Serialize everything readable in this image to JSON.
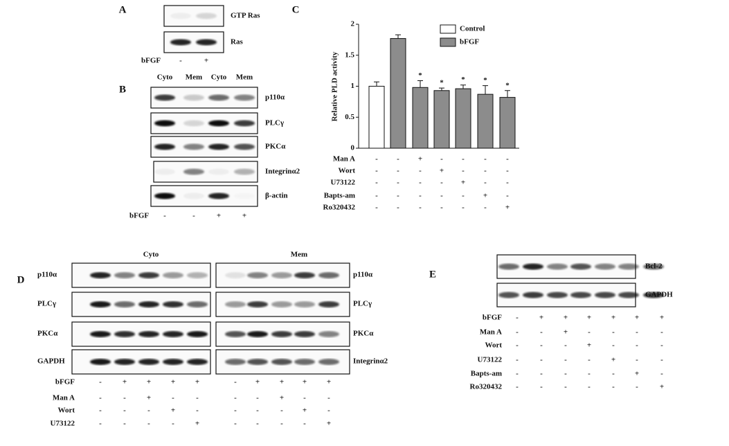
{
  "panels": {
    "a": {
      "label": "A",
      "blots": [
        "GTP Ras",
        "Ras"
      ],
      "treatments": [
        {
          "name": "bFGF",
          "signs": [
            "-",
            "+"
          ]
        }
      ]
    },
    "b": {
      "label": "B",
      "columns": [
        "Cyto",
        "Mem",
        "Cyto",
        "Mem"
      ],
      "blots": [
        "p110α",
        "PLCγ",
        "PKCα",
        "Integrinα2",
        "β-actin"
      ],
      "treatments": [
        {
          "name": "bFGF",
          "signs": [
            "-",
            "-",
            "+",
            "+"
          ]
        }
      ]
    },
    "c": {
      "label": "C",
      "treatments": [
        {
          "name": "Man A",
          "signs": [
            "-",
            "-",
            "+",
            "-",
            "-",
            "-",
            "-"
          ]
        },
        {
          "name": "Wort",
          "signs": [
            "-",
            "-",
            "-",
            "+",
            "-",
            "-",
            "-"
          ]
        },
        {
          "name": "U73122",
          "signs": [
            "-",
            "-",
            "-",
            "-",
            "+",
            "-",
            "-"
          ]
        },
        {
          "name": "Bapts-am",
          "signs": [
            "-",
            "-",
            "-",
            "-",
            "-",
            "+",
            "-"
          ]
        },
        {
          "name": "Ro320432",
          "signs": [
            "-",
            "-",
            "-",
            "-",
            "-",
            "-",
            "+"
          ]
        }
      ]
    },
    "d": {
      "label": "D",
      "sections": [
        {
          "title": "Cyto",
          "blots": [
            "p110α",
            "PLCγ",
            "PKCα",
            "GAPDH"
          ]
        },
        {
          "title": "Mem",
          "blots": [
            "p110α",
            "PLCγ",
            "PKCα",
            "Integrinα2"
          ]
        }
      ],
      "treatments": [
        {
          "name": "bFGF",
          "cyto": [
            "-",
            "+",
            "+",
            "+",
            "+"
          ],
          "mem": [
            "-",
            "+",
            "+",
            "+",
            "+"
          ]
        },
        {
          "name": "Man A",
          "cyto": [
            "-",
            "-",
            "+",
            "-",
            "-"
          ],
          "mem": [
            "-",
            "-",
            "+",
            "-",
            "-"
          ]
        },
        {
          "name": "Wort",
          "cyto": [
            "-",
            "-",
            "-",
            "+",
            "-"
          ],
          "mem": [
            "-",
            "-",
            "-",
            "+",
            "-"
          ]
        },
        {
          "name": "U73122",
          "cyto": [
            "-",
            "-",
            "-",
            "-",
            "+"
          ],
          "mem": [
            "-",
            "-",
            "-",
            "-",
            "+"
          ]
        }
      ]
    },
    "e": {
      "label": "E",
      "blots": [
        "Bcl-2",
        "GAPDH"
      ],
      "treatments": [
        {
          "name": "bFGF",
          "signs": [
            "-",
            "+",
            "+",
            "+",
            "+",
            "+",
            "+"
          ]
        },
        {
          "name": "Man A",
          "signs": [
            "-",
            "-",
            "+",
            "-",
            "-",
            "-",
            "-"
          ]
        },
        {
          "name": "Wort",
          "signs": [
            "-",
            "-",
            "-",
            "+",
            "-",
            "-",
            "-"
          ]
        },
        {
          "name": "U73122",
          "signs": [
            "-",
            "-",
            "-",
            "-",
            "+",
            "-",
            "-"
          ]
        },
        {
          "name": "Bapts-am",
          "signs": [
            "-",
            "-",
            "-",
            "-",
            "-",
            "+",
            "-"
          ]
        },
        {
          "name": "Ro320432",
          "signs": [
            "-",
            "-",
            "-",
            "-",
            "-",
            "-",
            "+"
          ]
        }
      ]
    }
  },
  "chart_data": {
    "type": "bar",
    "y_label": "Relative PLD activity",
    "categories": [
      null,
      null,
      null,
      null,
      null,
      null,
      null
    ],
    "series": [
      {
        "name": "Control",
        "color": "#ffffff",
        "values": [
          1.0,
          null,
          null,
          null,
          null,
          null,
          null
        ],
        "errors": [
          0.07,
          null,
          null,
          null,
          null,
          null,
          null
        ]
      },
      {
        "name": "bFGF",
        "color": "#8c8c8c",
        "values": [
          null,
          1.77,
          0.98,
          0.93,
          0.96,
          0.87,
          0.82
        ],
        "errors": [
          null,
          0.06,
          0.11,
          0.04,
          0.06,
          0.14,
          0.11
        ]
      }
    ],
    "significance": [
      null,
      null,
      "*",
      "*",
      "*",
      "*",
      "*"
    ],
    "ylim": [
      0,
      2
    ],
    "yticks": [
      0,
      0.5,
      1,
      {
        "value": 1.5,
        "label": "1.5"
      },
      2
    ]
  }
}
